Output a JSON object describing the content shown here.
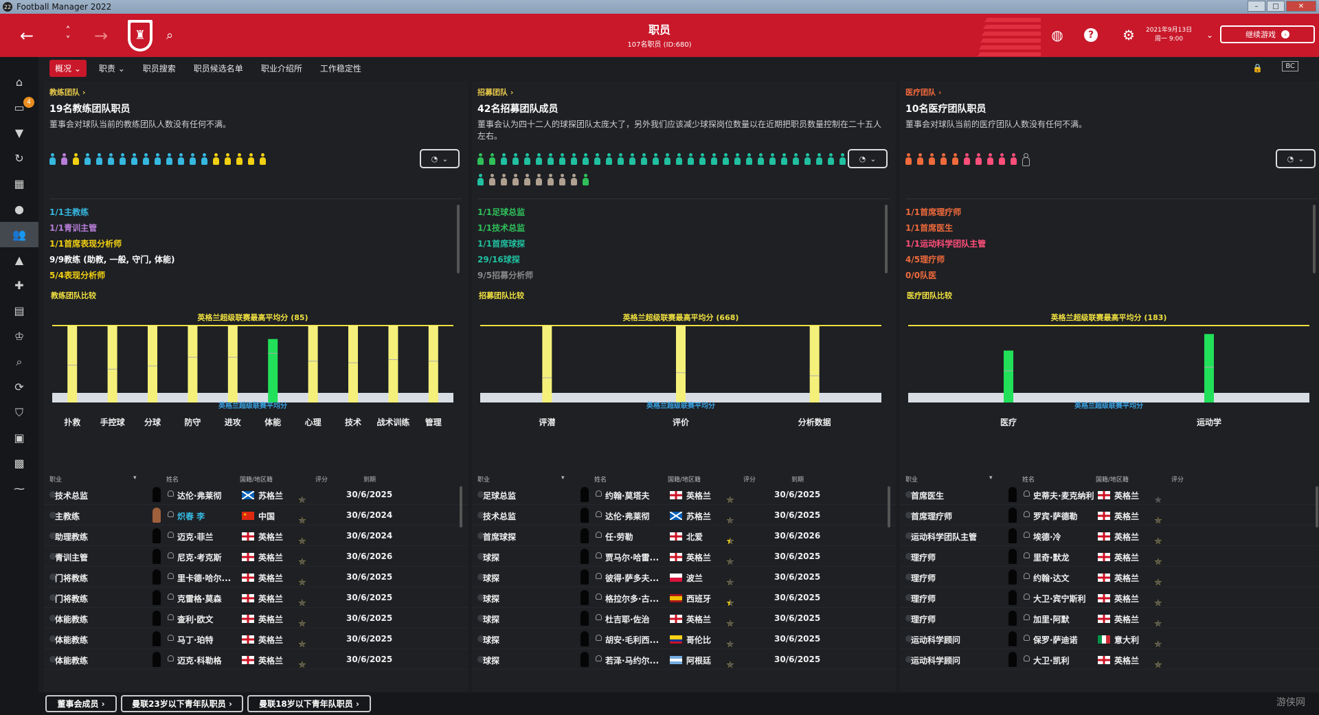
{
  "window": {
    "title": "Football Manager 2022",
    "icon": "22"
  },
  "header": {
    "title": "职员",
    "subtitle": "107名职员 (ID:680)",
    "date": "2021年9月13日",
    "time": "周一 9:00",
    "continue": "继续游戏"
  },
  "sidebar": {
    "badge": "4"
  },
  "subnav": {
    "tabs": [
      "概况",
      "职责",
      "职员搜索",
      "职员候选名单",
      "职业介绍所",
      "工作稳定性"
    ]
  },
  "panels": [
    {
      "crumb": "教练团队 ›",
      "title": "19名教练团队职员",
      "desc": "董事会对球队当前的教练团队人数没有任何不满。",
      "accent": "#e8c84a",
      "people_colors": [
        "#36b8e0",
        "#b87ed8",
        "#f2d012",
        "#36b8e0",
        "#36b8e0",
        "#36b8e0",
        "#36b8e0",
        "#36b8e0",
        "#36b8e0",
        "#36b8e0",
        "#36b8e0",
        "#36b8e0",
        "#36b8e0",
        "#36b8e0",
        "#f2d012",
        "#f2d012",
        "#f2d012",
        "#f2d012",
        "#f2d012"
      ],
      "roles": [
        {
          "text": "1/1主教练",
          "color": "#36b8e0"
        },
        {
          "text": "1/1青训主管",
          "color": "#b87ed8"
        },
        {
          "text": "1/1首席表现分析师",
          "color": "#f2d012"
        },
        {
          "text": "9/9教练 (助教, 一般, 守门, 体能)",
          "color": "#ffffff"
        },
        {
          "text": "5/4表现分析师",
          "color": "#f2d012"
        }
      ],
      "compare": "教练团队比较",
      "chart_data": {
        "type": "bar",
        "title": "英格兰超级联赛最高平均分 (85)",
        "avg_label": "英格兰超级联赛平均分",
        "categories": [
          "扑救",
          "手控球",
          "分球",
          "防守",
          "进攻",
          "体能",
          "心理",
          "技术",
          "战术训练",
          "管理"
        ],
        "values": [
          85,
          85,
          85,
          85,
          85,
          68,
          85,
          85,
          85,
          85
        ],
        "league_avg": [
          35,
          30,
          34,
          45,
          45,
          50,
          40,
          38,
          42,
          40
        ],
        "colors": [
          "#f5f07a",
          "#f5f07a",
          "#f5f07a",
          "#f5f07a",
          "#f5f07a",
          "#22e05a",
          "#f5f07a",
          "#f5f07a",
          "#f5f07a",
          "#f5f07a"
        ],
        "ylim": [
          0,
          85
        ]
      },
      "col_headers": [
        "职业",
        "姓名",
        "国籍/地区籍",
        "评分",
        "到期"
      ],
      "rows": [
        {
          "role": "技术总监",
          "name": "达伦·弗莱彻",
          "nation": "苏格兰",
          "flag": "sco",
          "stars": 3.5,
          "exp": "30/6/2025"
        },
        {
          "role": "主教练",
          "name": "炽春 李",
          "nation": "中国",
          "flag": "chn",
          "stars": 4,
          "exp": "30/6/2024",
          "highlight": true
        },
        {
          "role": "助理教练",
          "name": "迈克·菲兰",
          "nation": "英格兰",
          "flag": "eng",
          "stars": 4,
          "exp": "30/6/2024"
        },
        {
          "role": "青训主管",
          "name": "尼克·考克斯",
          "nation": "英格兰",
          "flag": "eng",
          "stars": 4,
          "exp": "30/6/2026"
        },
        {
          "role": "门将教练",
          "name": "里卡德·哈尔...",
          "nation": "英格兰",
          "flag": "eng",
          "stars": 4,
          "exp": "30/6/2025"
        },
        {
          "role": "门将教练",
          "name": "克雷格·莫森",
          "nation": "英格兰",
          "flag": "eng",
          "stars": 4,
          "exp": "30/6/2025"
        },
        {
          "role": "体能教练",
          "name": "查利·欧文",
          "nation": "英格兰",
          "flag": "eng",
          "stars": 4,
          "exp": "30/6/2025"
        },
        {
          "role": "体能教练",
          "name": "马丁·珀特",
          "nation": "英格兰",
          "flag": "eng",
          "stars": 4,
          "exp": "30/6/2025"
        },
        {
          "role": "体能教练",
          "name": "迈克·科勒格",
          "nation": "英格兰",
          "flag": "eng",
          "stars": 4,
          "exp": "30/6/2025"
        }
      ]
    },
    {
      "crumb": "招募团队 ›",
      "title": "42名招募团队成员",
      "desc": "董事会认为四十二人的球探团队太庞大了，另外我们应该减少球探岗位数量以在近期把职员数量控制在二十五人左右。",
      "accent": "#e8c84a",
      "people_colors": [
        "#2fc05a",
        "#2fc05a",
        "#20c0a0",
        "#20c0a0",
        "#20c0a0",
        "#20c0a0",
        "#20c0a0",
        "#20c0a0",
        "#20c0a0",
        "#20c0a0",
        "#20c0a0",
        "#20c0a0",
        "#20c0a0",
        "#20c0a0",
        "#20c0a0",
        "#20c0a0",
        "#20c0a0",
        "#20c0a0",
        "#20c0a0",
        "#20c0a0",
        "#20c0a0",
        "#20c0a0",
        "#20c0a0",
        "#20c0a0",
        "#20c0a0",
        "#20c0a0",
        "#20c0a0",
        "#20c0a0",
        "#20c0a0",
        "#20c0a0",
        "#20c0a0",
        "#20c0a0",
        "#20c0a0",
        "#b0a090",
        "#b0a090",
        "#b0a090",
        "#b0a090",
        "#b0a090",
        "#b0a090",
        "#b0a090",
        "#b0a090",
        "#2fc05a"
      ],
      "roles": [
        {
          "text": "1/1足球总监",
          "color": "#2fc05a"
        },
        {
          "text": "1/1技术总监",
          "color": "#2fc05a"
        },
        {
          "text": "1/1首席球探",
          "color": "#20c0a0"
        },
        {
          "text": "29/16球探",
          "color": "#20c0a0"
        },
        {
          "text": "9/5招募分析师",
          "color": "#888888"
        }
      ],
      "compare": "招募团队比较",
      "chart_data": {
        "type": "bar",
        "title": "英格兰超级联赛最高平均分 (668)",
        "avg_label": "英格兰超级联赛平均分",
        "categories": [
          "评潜",
          "评价",
          "分析数据"
        ],
        "values": [
          668,
          668,
          668
        ],
        "league_avg": [
          150,
          200,
          170
        ],
        "colors": [
          "#f5f07a",
          "#f5f07a",
          "#f5f07a"
        ],
        "ylim": [
          0,
          668
        ]
      },
      "col_headers": [
        "职业",
        "姓名",
        "国籍/地区籍",
        "评分",
        "到期"
      ],
      "rows": [
        {
          "role": "足球总监",
          "name": "约翰·莫塔夫",
          "nation": "英格兰",
          "flag": "eng",
          "stars": 4,
          "exp": "30/6/2025"
        },
        {
          "role": "技术总监",
          "name": "达伦·弗莱彻",
          "nation": "苏格兰",
          "flag": "sco",
          "stars": 3.5,
          "exp": "30/6/2025"
        },
        {
          "role": "首席球探",
          "name": "任·劳勒",
          "nation": "北爱",
          "flag": "eng",
          "stars": 4.5,
          "exp": "30/6/2026"
        },
        {
          "role": "球探",
          "name": "贾马尔·哈雷...",
          "nation": "英格兰",
          "flag": "eng",
          "stars": 3.5,
          "exp": "30/6/2025"
        },
        {
          "role": "球探",
          "name": "彼得·萨多夫...",
          "nation": "波兰",
          "flag": "pol",
          "stars": 3.5,
          "exp": "30/6/2025"
        },
        {
          "role": "球探",
          "name": "格拉尔多·古...",
          "nation": "西班牙",
          "flag": "esp",
          "stars": 4.5,
          "exp": "30/6/2025"
        },
        {
          "role": "球探",
          "name": "杜吉耶·佐治",
          "nation": "英格兰",
          "flag": "eng",
          "stars": 4,
          "exp": "30/6/2025"
        },
        {
          "role": "球探",
          "name": "胡安·毛利西...",
          "nation": "哥伦比",
          "flag": "col",
          "stars": 3.5,
          "exp": "30/6/2025"
        },
        {
          "role": "球探",
          "name": "若泽·马约尔...",
          "nation": "阿根廷",
          "flag": "arg",
          "stars": 4,
          "exp": "30/6/2025"
        }
      ]
    },
    {
      "crumb": "医疗团队 ›",
      "title": "10名医疗团队职员",
      "desc": "董事会对球队当前的医疗团队人数没有任何不满。",
      "accent": "#f06a3c",
      "people_colors": [
        "#f06a3c",
        "#f06a3c",
        "#f06a3c",
        "#f06a3c",
        "#f06a3c",
        "#ff4f7a",
        "#ff4f7a",
        "#ff4f7a",
        "#ff4f7a",
        "#ff4f7a",
        "empty"
      ],
      "roles": [
        {
          "text": "1/1首席理疗师",
          "color": "#f06a3c"
        },
        {
          "text": "1/1首席医生",
          "color": "#f06a3c"
        },
        {
          "text": "1/1运动科学团队主管",
          "color": "#ff4f7a"
        },
        {
          "text": "4/5理疗师",
          "color": "#f06a3c"
        },
        {
          "text": "0/0队医",
          "color": "#f06a3c"
        }
      ],
      "compare": "医疗团队比较",
      "chart_data": {
        "type": "bar",
        "title": "英格兰超级联赛最高平均分 (183)",
        "avg_label": "英格兰超级联赛平均分",
        "categories": [
          "医疗",
          "运动学"
        ],
        "values": [
          115,
          160
        ],
        "league_avg": [
          60,
          70
        ],
        "colors": [
          "#22e05a",
          "#22e05a"
        ],
        "ylim": [
          0,
          183
        ]
      },
      "col_headers": [
        "职业",
        "姓名",
        "国籍/地区籍",
        "评分"
      ],
      "rows": [
        {
          "role": "首席医生",
          "name": "史蒂夫·麦克纳利",
          "nation": "英格兰",
          "flag": "eng",
          "stars": 0.5
        },
        {
          "role": "首席理疗师",
          "name": "罗宾·萨德勒",
          "nation": "英格兰",
          "flag": "eng",
          "stars": 4
        },
        {
          "role": "运动科学团队主管",
          "name": "埃德·冷",
          "nation": "英格兰",
          "flag": "eng",
          "stars": 4
        },
        {
          "role": "理疗师",
          "name": "里奇·默龙",
          "nation": "英格兰",
          "flag": "eng",
          "stars": 4
        },
        {
          "role": "理疗师",
          "name": "约翰·达文",
          "nation": "英格兰",
          "flag": "eng",
          "stars": 4
        },
        {
          "role": "理疗师",
          "name": "大卫·宾宁斯利",
          "nation": "英格兰",
          "flag": "eng",
          "stars": 4
        },
        {
          "role": "理疗师",
          "name": "加里·阿默",
          "nation": "英格兰",
          "flag": "eng",
          "stars": 3.5
        },
        {
          "role": "运动科学顾问",
          "name": "保罗·萨迪诺",
          "nation": "意大利",
          "flag": "ita",
          "stars": 3.5
        },
        {
          "role": "运动科学顾问",
          "name": "大卫·凯利",
          "nation": "英格兰",
          "flag": "eng",
          "stars": 4
        }
      ]
    }
  ],
  "footer": {
    "buttons": [
      "董事会成员 ›",
      "曼联23岁以下青年队职员 ›",
      "曼联18岁以下青年队职员 ›"
    ],
    "watermark": "游侠网"
  }
}
